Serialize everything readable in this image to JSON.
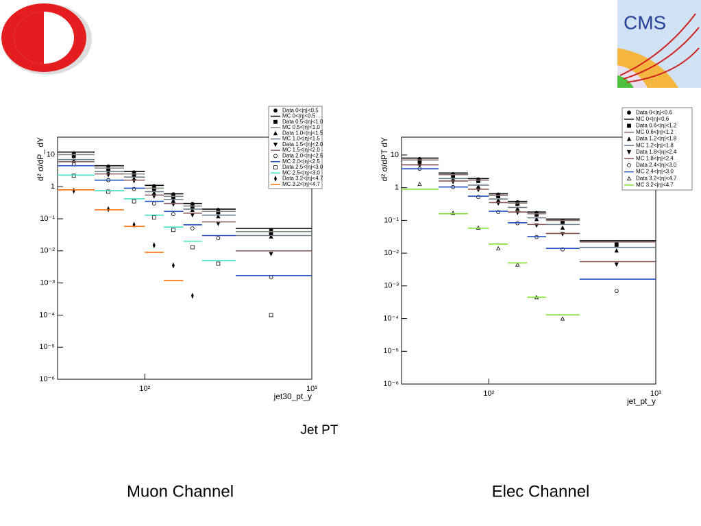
{
  "slide": {
    "caption": "Jet PT",
    "labels": [
      "Muon Channel",
      "Elec Channel"
    ],
    "logo_text": "CMS"
  },
  "chart_data": [
    {
      "type": "histogram",
      "xlabel": "jet30_pt_y",
      "ylabel": "d² σ/dP_ dY",
      "xlog": true,
      "ylog": true,
      "xlim": [
        30,
        1000
      ],
      "ylim": [
        1e-06,
        35
      ],
      "xticks": [
        {
          "value": 100,
          "label": "10²"
        },
        {
          "value": 1000,
          "label": "10³"
        }
      ],
      "yticks": [
        {
          "value": 1e-06,
          "label": "10⁻⁶"
        },
        {
          "value": 1e-05,
          "label": "10⁻⁵"
        },
        {
          "value": 0.0001,
          "label": "10⁻⁴"
        },
        {
          "value": 0.001,
          "label": "10⁻³"
        },
        {
          "value": 0.01,
          "label": "10⁻²"
        },
        {
          "value": 0.1,
          "label": "10⁻¹"
        },
        1,
        10
      ],
      "bins": [
        30,
        50,
        75,
        100,
        130,
        170,
        220,
        350,
        1000
      ],
      "series": [
        {
          "name": "Data 0<|η|<0.5",
          "color": "#000000",
          "marker": "circle",
          "values": [
            11,
            4.3,
            2.8,
            1.05,
            0.58,
            0.29,
            0.19,
            0.045
          ]
        },
        {
          "name": "MC 0<|η|<0.5",
          "color": "#000000",
          "marker": "line",
          "values": [
            12,
            4.5,
            3,
            1.1,
            0.6,
            0.3,
            0.2,
            0.05
          ]
        },
        {
          "name": "Data 0.5<|η|<1.0",
          "color": "#000000",
          "marker": "square",
          "values": [
            9,
            3.5,
            2.3,
            0.85,
            0.47,
            0.24,
            0.16,
            0.035
          ]
        },
        {
          "name": "MC 0.5<|η|<1.0",
          "color": "#888888",
          "marker": "line",
          "values": [
            10,
            3.8,
            2.5,
            0.9,
            0.5,
            0.25,
            0.17,
            0.04
          ]
        },
        {
          "name": "Data 1.0<|η|<1.5",
          "color": "#000000",
          "marker": "triangle",
          "values": [
            6.5,
            2.8,
            1.8,
            0.65,
            0.37,
            0.19,
            0.12,
            0.028
          ]
        },
        {
          "name": "MC 1.0<|η|<1.5",
          "color": "#6a7b8c",
          "marker": "line",
          "values": [
            7,
            3,
            2,
            0.7,
            0.4,
            0.2,
            0.13,
            0.03
          ]
        },
        {
          "name": "Data 1.5<|η|<2.0",
          "color": "#000000",
          "marker": "triangle-down",
          "values": [
            5.5,
            2.3,
            1.5,
            0.5,
            0.28,
            0.13,
            0.07,
            0.008
          ]
        },
        {
          "name": "MC 1.5<|η|<2.0",
          "color": "#8b6060",
          "marker": "line",
          "values": [
            6,
            2.5,
            1.6,
            0.55,
            0.3,
            0.15,
            0.08,
            0.01
          ]
        },
        {
          "name": "Data 2.0<|η|<2.5",
          "color": "#000000",
          "marker": "open-circle",
          "values": [
            5,
            1.6,
            0.85,
            0.3,
            0.14,
            0.05,
            0.025,
            0.0015
          ]
        },
        {
          "name": "MC 2.0<|η|<2.5",
          "color": "#1f4fbf",
          "marker": "line",
          "values": [
            4.5,
            1.6,
            0.9,
            0.35,
            0.17,
            0.065,
            0.03,
            0.0017
          ]
        },
        {
          "name": "Data 2.5<|η|<3.0",
          "color": "#000000",
          "marker": "open-square",
          "values": [
            2.2,
            0.7,
            0.35,
            0.11,
            0.045,
            0.013,
            0.004,
            0.0001
          ]
        },
        {
          "name": "MC 2.5<|η|<3.0",
          "color": "#40e0c0",
          "marker": "line",
          "values": [
            2.3,
            0.75,
            0.42,
            0.13,
            0.055,
            0.02,
            0.005,
            null
          ]
        },
        {
          "name": "Data 3.2<|η|<4.7",
          "color": "#000000",
          "marker": "diamond",
          "values": [
            0.75,
            0.2,
            0.065,
            0.015,
            0.0035,
            0.0004,
            null,
            null
          ]
        },
        {
          "name": "MC 3.2<|η|<4.7",
          "color": "#ff6a00",
          "marker": "line",
          "values": [
            0.8,
            0.19,
            0.058,
            0.009,
            0.0012,
            null,
            null,
            null
          ]
        }
      ]
    },
    {
      "type": "histogram",
      "xlabel": "jet_pt_y",
      "ylabel": "d² σ/dPT dY",
      "xlog": true,
      "ylog": true,
      "xlim": [
        30,
        1000
      ],
      "ylim": [
        1e-06,
        35
      ],
      "xticks": [
        {
          "value": 100,
          "label": "10²"
        },
        {
          "value": 1000,
          "label": "10³"
        }
      ],
      "yticks": [
        {
          "value": 1e-06,
          "label": "10⁻⁶"
        },
        {
          "value": 1e-05,
          "label": "10⁻⁵"
        },
        {
          "value": 0.0001,
          "label": "10⁻⁴"
        },
        {
          "value": 0.001,
          "label": "10⁻³"
        },
        {
          "value": 0.01,
          "label": "10⁻²"
        },
        {
          "value": 0.1,
          "label": "10⁻¹"
        },
        1,
        10
      ],
      "bins": [
        30,
        50,
        75,
        100,
        130,
        170,
        220,
        350,
        1000
      ],
      "series": [
        {
          "name": "Data 0<|η|<0.6",
          "color": "#000000",
          "marker": "circle",
          "values": [
            7.5,
            2.6,
            1.8,
            0.62,
            0.36,
            0.17,
            0.1,
            0.02
          ]
        },
        {
          "name": "MC 0<|η|<0.6",
          "color": "#000000",
          "marker": "line",
          "values": [
            8,
            2.8,
            1.9,
            0.65,
            0.38,
            0.18,
            0.11,
            0.024
          ]
        },
        {
          "name": "Data 0.6<|η|<1.2",
          "color": "#000000",
          "marker": "square",
          "values": [
            6.5,
            2.3,
            1.6,
            0.55,
            0.32,
            0.15,
            0.09,
            0.018
          ]
        },
        {
          "name": "MC 0.6<|η|<1.2",
          "color": "#8b7070",
          "marker": "line",
          "values": [
            7,
            2.5,
            1.7,
            0.58,
            0.34,
            0.16,
            0.1,
            0.022
          ]
        },
        {
          "name": "Data 1.2<|η|<1.8",
          "color": "#000000",
          "marker": "triangle",
          "values": [
            5.5,
            1.8,
            1.1,
            0.42,
            0.23,
            0.11,
            0.06,
            0.012
          ]
        },
        {
          "name": "MC 1.2<|η|<1.8",
          "color": "#6a7b8c",
          "marker": "line",
          "values": [
            5,
            1.9,
            1.2,
            0.45,
            0.25,
            0.12,
            0.075,
            0.015
          ]
        },
        {
          "name": "Data 1.8<|η|<2.4",
          "color": "#000000",
          "marker": "triangle-down",
          "values": [
            4.8,
            1.5,
            0.85,
            0.33,
            0.17,
            0.07,
            0.038,
            0.0045
          ]
        },
        {
          "name": "MC 1.8<|η|<2.4",
          "color": "#8b5050",
          "marker": "line",
          "values": [
            5,
            1.6,
            0.9,
            0.35,
            0.18,
            0.075,
            0.04,
            0.0055
          ]
        },
        {
          "name": "Data 2.4<|η|<3.0",
          "color": "#000000",
          "marker": "open-circle",
          "values": [
            3.8,
            1.05,
            0.52,
            0.18,
            0.082,
            0.031,
            0.013,
            0.0007
          ]
        },
        {
          "name": "MC 2.4<|η|<3.0",
          "color": "#1f4fbf",
          "marker": "line",
          "values": [
            3.8,
            1.05,
            0.55,
            0.19,
            0.085,
            0.032,
            0.014,
            0.0016
          ]
        },
        {
          "name": "Data 3.2<|η|<4.7",
          "color": "#000000",
          "marker": "open-triangle",
          "values": [
            1.3,
            0.17,
            0.06,
            0.014,
            0.0045,
            0.00045,
            0.0001,
            null
          ]
        },
        {
          "name": "MC 3.2<|η|<4.7",
          "color": "#7ddc2a",
          "marker": "line",
          "values": [
            0.9,
            0.16,
            0.058,
            0.019,
            0.005,
            0.00045,
            0.00013,
            null
          ]
        }
      ]
    }
  ]
}
